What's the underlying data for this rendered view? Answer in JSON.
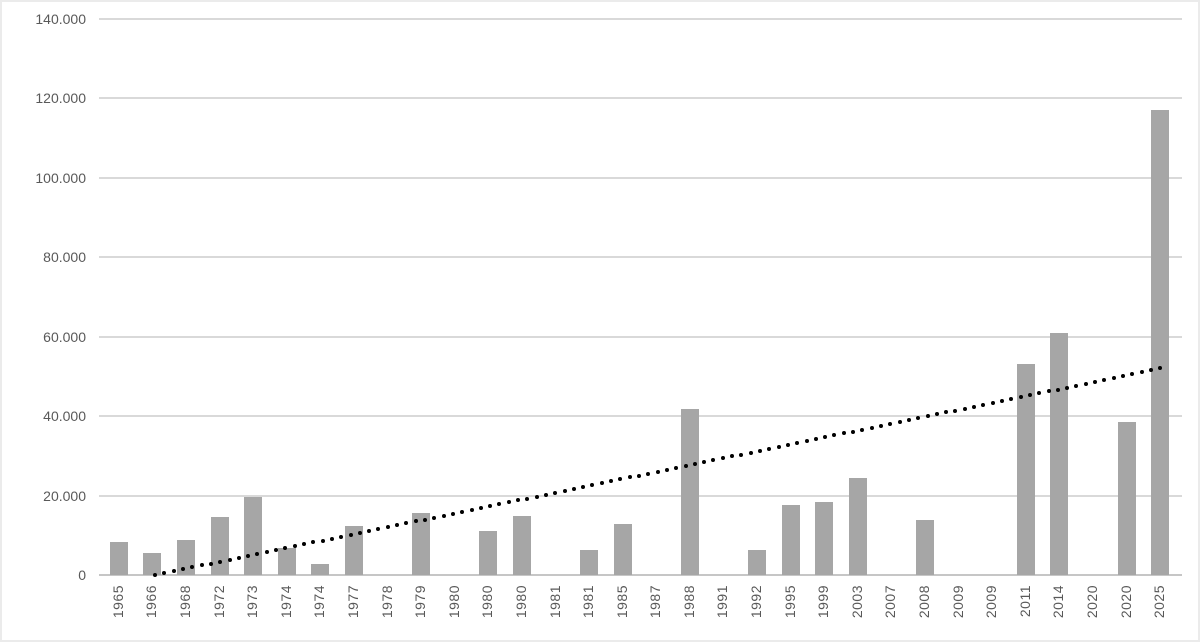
{
  "chart_data": {
    "type": "bar",
    "title": "",
    "xlabel": "",
    "ylabel": "",
    "categories": [
      "1965",
      "1966",
      "1968",
      "1972",
      "1973",
      "1974",
      "1974",
      "1977",
      "1978",
      "1979",
      "1980",
      "1980",
      "1980",
      "1981",
      "1981",
      "1985",
      "1987",
      "1988",
      "1991",
      "1992",
      "1995",
      "1999",
      "2003",
      "2007",
      "2008",
      "2009",
      "2009",
      "2011",
      "2014",
      "2020",
      "2020",
      "2025"
    ],
    "values": [
      8400,
      5500,
      8900,
      14600,
      19600,
      6700,
      2800,
      12300,
      0,
      15500,
      0,
      11200,
      14800,
      0,
      6400,
      12900,
      0,
      41900,
      0,
      6300,
      17700,
      18300,
      24500,
      0,
      13800,
      0,
      0,
      53200,
      61000,
      0,
      38500,
      117000
    ],
    "yaxis": {
      "min": 0,
      "max": 140000,
      "ticks": [
        {
          "label": "140.000",
          "value": 140000
        },
        {
          "label": "120.000",
          "value": 120000
        },
        {
          "label": "100.000",
          "value": 100000
        },
        {
          "label": "80.000",
          "value": 80000
        },
        {
          "label": "60.000",
          "value": 60000
        },
        {
          "label": "40.000",
          "value": 40000
        },
        {
          "label": "20.000",
          "value": 20000
        },
        {
          "label": "0",
          "value": 0
        }
      ]
    },
    "trendline": {
      "style": "dotted",
      "color": "#000000",
      "start": {
        "category_index": 1.08,
        "value": 0
      },
      "end": {
        "category_index": 31.0,
        "value": 52000
      }
    },
    "legend": "none",
    "grid": "horizontal",
    "colors": {
      "bar": "#a6a6a6",
      "gridline": "#d9d9d9",
      "axis_line": "#c6c6c6",
      "tick_label": "#595959",
      "background": "#ffffff",
      "frame_border": "#ebebeb"
    }
  }
}
